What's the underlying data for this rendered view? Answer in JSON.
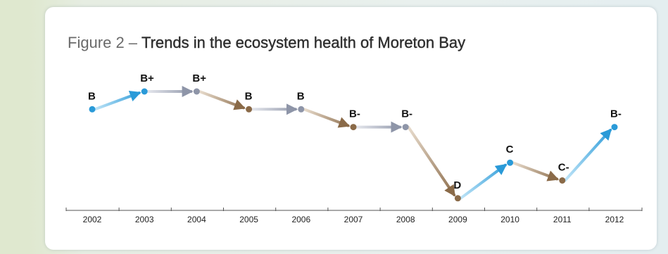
{
  "title_prefix": "Figure 2",
  "title_sep": "–",
  "title_main": "Trends in the ecosystem health of Moreton Bay",
  "colors": {
    "improve": "#2a9ad8",
    "same": "#8e95a8",
    "decline": "#8a6a48"
  },
  "chart_data": {
    "type": "line",
    "title": "Trends in the ecosystem health of Moreton Bay",
    "x": [
      "2002",
      "2003",
      "2004",
      "2005",
      "2006",
      "2007",
      "2008",
      "2009",
      "2010",
      "2011",
      "2012"
    ],
    "grades": [
      "B",
      "B+",
      "B+",
      "B",
      "B",
      "B-",
      "B-",
      "D",
      "C",
      "C-",
      "B-"
    ],
    "values": [
      9,
      10,
      10,
      9,
      9,
      8,
      8,
      4,
      6,
      5,
      8
    ],
    "grade_scale_note": "ordinal grade rank",
    "xlabel": "",
    "ylabel": "",
    "grid": false,
    "legend": "none"
  }
}
